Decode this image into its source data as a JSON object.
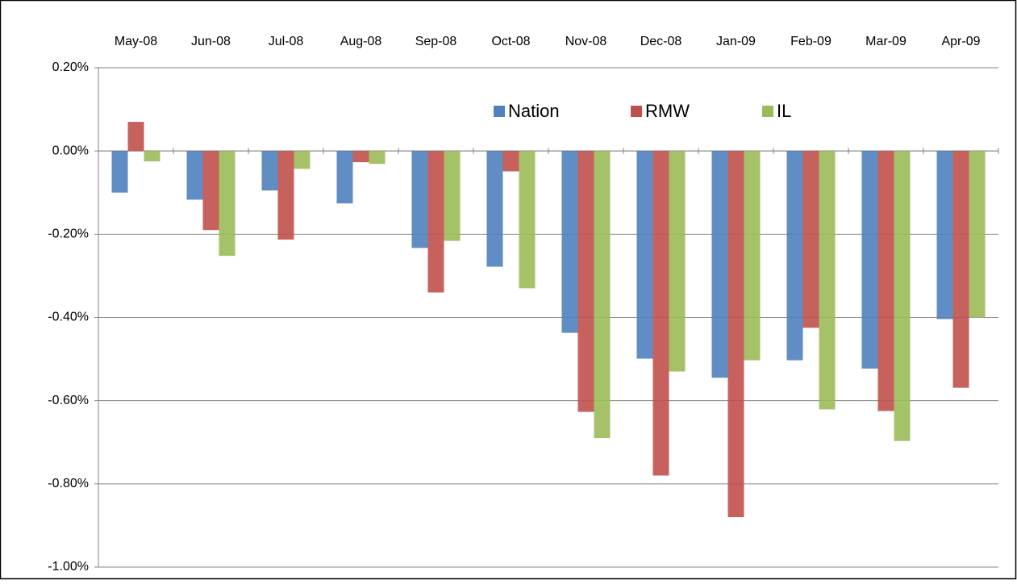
{
  "chart_data": {
    "type": "bar",
    "categories": [
      "May-08",
      "Jun-08",
      "Jul-08",
      "Aug-08",
      "Sep-08",
      "Oct-08",
      "Nov-08",
      "Dec-08",
      "Jan-09",
      "Feb-09",
      "Mar-09",
      "Apr-09"
    ],
    "series": [
      {
        "name": "Nation",
        "color": "#4f81bd",
        "values": [
          -0.1,
          -0.117,
          -0.095,
          -0.126,
          -0.233,
          -0.278,
          -0.437,
          -0.499,
          -0.545,
          -0.503,
          -0.523,
          -0.404
        ]
      },
      {
        "name": "RMW",
        "color": "#c0504d",
        "values": [
          0.07,
          -0.19,
          -0.213,
          -0.027,
          -0.34,
          -0.049,
          -0.627,
          -0.78,
          -0.88,
          -0.425,
          -0.625,
          -0.569
        ]
      },
      {
        "name": "IL",
        "color": "#9bbb59",
        "values": [
          -0.025,
          -0.252,
          -0.043,
          -0.031,
          -0.216,
          -0.33,
          -0.69,
          -0.53,
          -0.503,
          -0.621,
          -0.697,
          -0.4
        ]
      }
    ],
    "ylim": [
      -1.0,
      0.2
    ],
    "yticks": [
      {
        "value": 0.2,
        "label": "0.20%"
      },
      {
        "value": 0,
        "label": "0.00%"
      },
      {
        "value": -0.2,
        "label": "-0.20%"
      },
      {
        "value": -0.4,
        "label": "-0.40%"
      },
      {
        "value": -0.6,
        "label": "-0.60%"
      },
      {
        "value": -0.8,
        "label": "-0.80%"
      },
      {
        "value": -1.0,
        "label": "-1.00%"
      }
    ],
    "grid": true,
    "legend": "top"
  }
}
